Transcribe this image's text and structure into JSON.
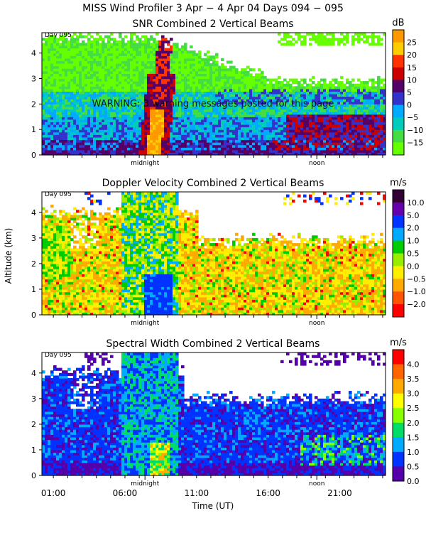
{
  "header": {
    "title": "MISS Wind Profiler    3 Apr −  4 Apr 04 Days 094 − 095"
  },
  "warning": "WARNING: 3 warning messages posted for this page",
  "axes": {
    "ylabel": "Altitude (km)",
    "xlabel": "Time (UT)",
    "day_label": "Day 095",
    "y_ticks": [
      "0",
      "1",
      "2",
      "3",
      "4"
    ],
    "x_ticks": [
      "01:00",
      "06:00",
      "11:00",
      "16:00",
      "21:00"
    ],
    "local_markers": [
      "midnight",
      "noon"
    ]
  },
  "chart_data": [
    {
      "type": "heatmap",
      "title": "SNR Combined 2 Vertical Beams",
      "colorbar_unit": "dB",
      "colorbar_ticks": [
        "25",
        "20",
        "15",
        "10",
        "5",
        "0",
        "−5",
        "−10",
        "−15"
      ],
      "colors": [
        "#ff9900",
        "#ffcc00",
        "#ff3300",
        "#cc0000",
        "#550066",
        "#3333cc",
        "#00aaff",
        "#00ccbb",
        "#44dd44",
        "#66ff00"
      ],
      "xlabel": "Time (UT)",
      "ylabel": "Altitude (km)",
      "xlim": [
        0,
        24
      ],
      "ylim": [
        0,
        4.8
      ]
    },
    {
      "type": "heatmap",
      "title": "Doppler Velocity Combined 2 Vertical Beams",
      "colorbar_unit": "m/s",
      "colorbar_ticks": [
        "10.0",
        "5.0",
        "2.0",
        "1.0",
        "0.5",
        "0.0",
        "−0.5",
        "−1.0",
        "−2.0"
      ],
      "colors": [
        "#330033",
        "#6600aa",
        "#0033ff",
        "#00aaff",
        "#00cc00",
        "#99ee00",
        "#ffee00",
        "#ffaa00",
        "#ff5500",
        "#ff0000"
      ],
      "xlabel": "Time (UT)",
      "ylabel": "Altitude (km)",
      "xlim": [
        0,
        24
      ],
      "ylim": [
        0,
        4.8
      ]
    },
    {
      "type": "heatmap",
      "title": "Spectral Width Combined 2 Vertical Beams",
      "colorbar_unit": "m/s",
      "colorbar_ticks": [
        "4.0",
        "3.5",
        "3.0",
        "2.5",
        "2.0",
        "1.5",
        "1.0",
        "0.5",
        "0.0"
      ],
      "colors": [
        "#ff0000",
        "#ff6600",
        "#ffaa00",
        "#ffff00",
        "#88ff00",
        "#00dd66",
        "#00aaff",
        "#0033ff",
        "#5500aa"
      ],
      "xlabel": "Time (UT)",
      "ylabel": "Altitude (km)",
      "xlim": [
        0,
        24
      ],
      "ylim": [
        0,
        4.8
      ]
    }
  ]
}
